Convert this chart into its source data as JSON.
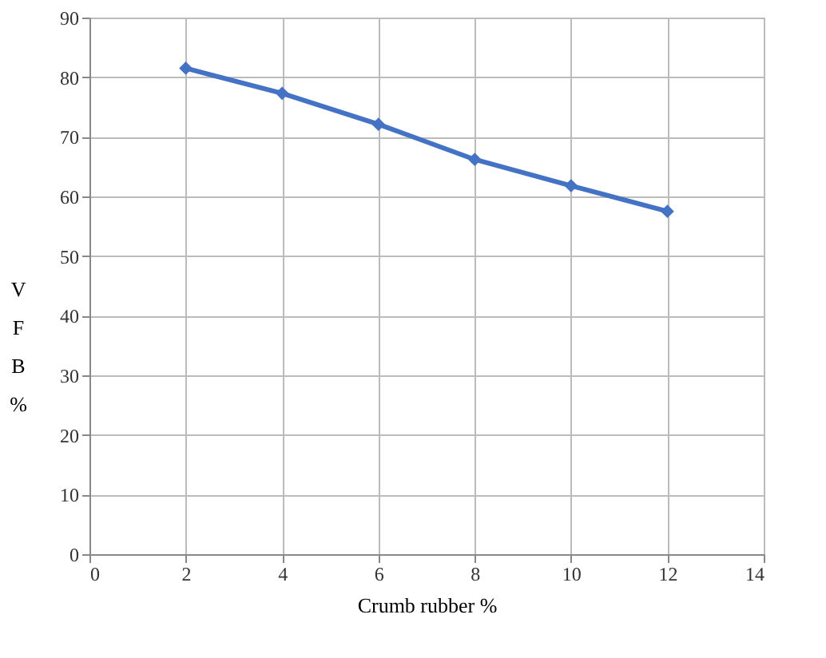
{
  "chart_data": {
    "type": "line",
    "xlabel": "Crumb rubber %",
    "ylabel": "VFB %",
    "x": [
      2,
      4,
      6,
      8,
      10,
      12
    ],
    "series": [
      {
        "color": "#4472c4",
        "values": [
          81.5,
          77.3,
          72.1,
          66.2,
          61.8,
          57.5
        ]
      }
    ],
    "xlim": [
      0,
      14
    ],
    "xticks": [
      0,
      2,
      4,
      6,
      8,
      10,
      12,
      14
    ],
    "ylim": [
      0,
      90
    ],
    "yticks": [
      0,
      10,
      20,
      30,
      40,
      50,
      60,
      70,
      80,
      90
    ],
    "grid": true,
    "marker": "diamond",
    "line_style": "solid"
  }
}
